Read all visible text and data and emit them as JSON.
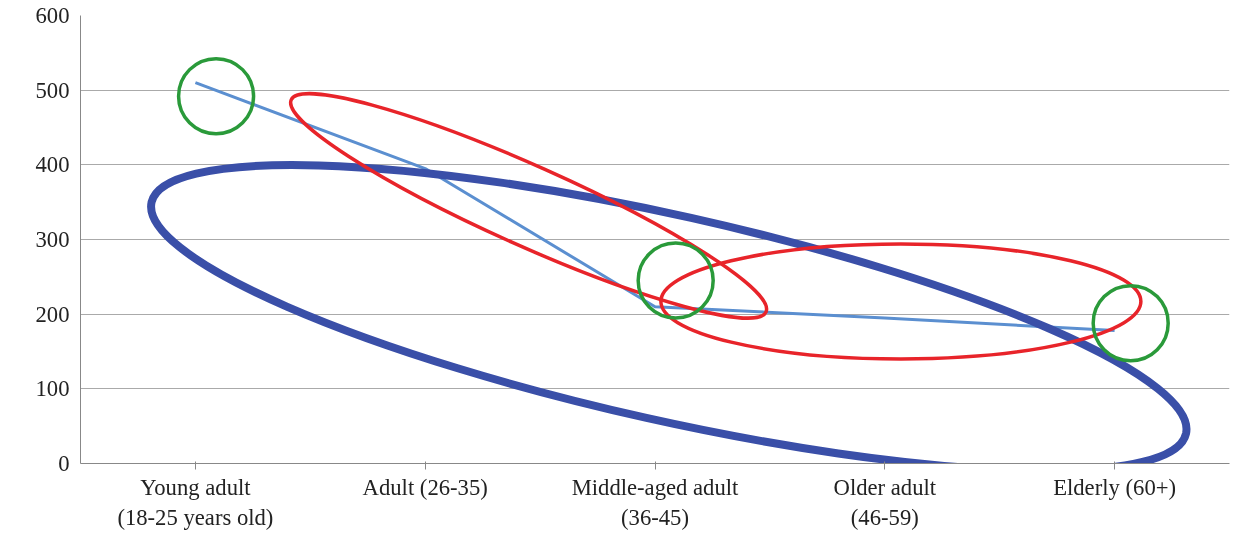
{
  "chart_data": {
    "type": "line",
    "categories": [
      "Young adult (18-25 years old)",
      "Adult (26-35)",
      "Middle-aged adult (36-45)",
      "Older adult (46-59)",
      "Elderly (60+)"
    ],
    "series": [
      {
        "color": "#5b8fd0",
        "values": [
          510,
          395,
          210,
          195,
          178
        ]
      }
    ],
    "ylim": [
      0,
      600
    ],
    "yticks": [
      0,
      100,
      200,
      300,
      400,
      500,
      600
    ],
    "grid": "y",
    "marker": "none",
    "line_style": "solid"
  }
}
